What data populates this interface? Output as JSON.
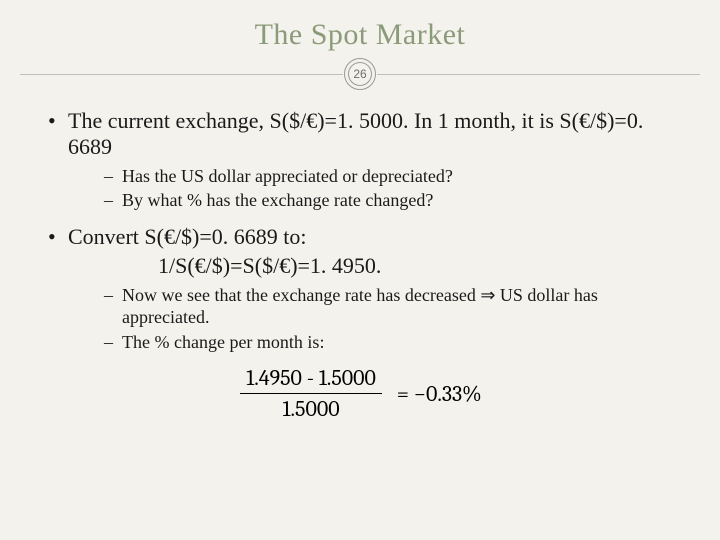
{
  "title": "The Spot Market",
  "page_number": "26",
  "bullets": {
    "b1_1": "The current exchange, S($/€)=1. 5000. In 1 month, it is S(€/$)=0. 6689",
    "b2_1": "Has the US dollar appreciated or depreciated?",
    "b2_2": "By what % has the exchange rate changed?",
    "b1_2": "Convert S(€/$)=0. 6689 to:",
    "indent": "1/S(€/$)=S($/€)=1. 4950.",
    "b2_3": "Now we see that the exchange rate has decreased ⇒ US dollar has appreciated.",
    "b2_4": "The % change per month is:"
  },
  "formula": {
    "numerator": "1.4950 - 1.5000",
    "denominator": "1.5000",
    "result": "= −0.33%"
  },
  "colors": {
    "title_color": "#8b9b7a",
    "background": "#f3f2ed",
    "text": "#1a1a1a",
    "divider": "#bfbfbf"
  }
}
